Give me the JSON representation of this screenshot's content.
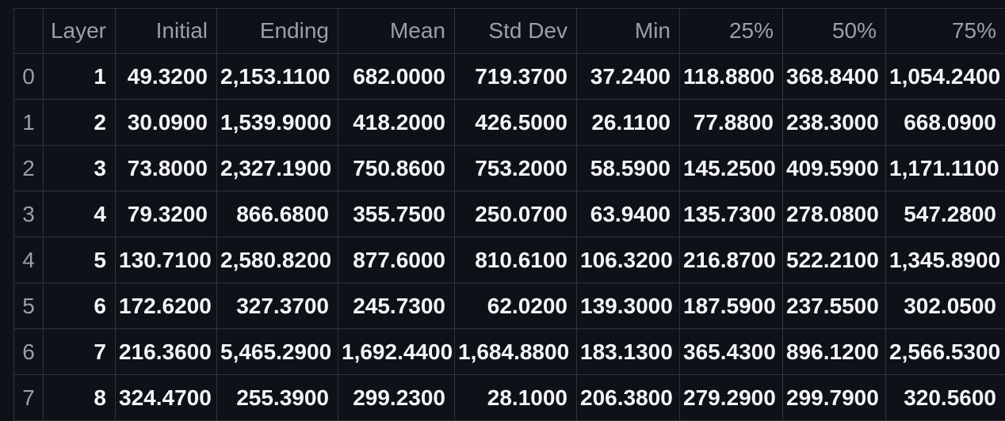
{
  "table": {
    "index_header": "",
    "columns": [
      "Layer",
      "Initial",
      "Ending",
      "Mean",
      "Std Dev",
      "Min",
      "25%",
      "50%",
      "75%"
    ],
    "rows": [
      {
        "index": "0",
        "cells": [
          "1",
          "49.3200",
          "2,153.1100",
          "682.0000",
          "719.3700",
          "37.2400",
          "118.8800",
          "368.8400",
          "1,054.2400"
        ]
      },
      {
        "index": "1",
        "cells": [
          "2",
          "30.0900",
          "1,539.9000",
          "418.2000",
          "426.5000",
          "26.1100",
          "77.8800",
          "238.3000",
          "668.0900"
        ]
      },
      {
        "index": "2",
        "cells": [
          "3",
          "73.8000",
          "2,327.1900",
          "750.8600",
          "753.2000",
          "58.5900",
          "145.2500",
          "409.5900",
          "1,171.1100"
        ]
      },
      {
        "index": "3",
        "cells": [
          "4",
          "79.3200",
          "866.6800",
          "355.7500",
          "250.0700",
          "63.9400",
          "135.7300",
          "278.0800",
          "547.2800"
        ]
      },
      {
        "index": "4",
        "cells": [
          "5",
          "130.7100",
          "2,580.8200",
          "877.6000",
          "810.6100",
          "106.3200",
          "216.8700",
          "522.2100",
          "1,345.8900"
        ]
      },
      {
        "index": "5",
        "cells": [
          "6",
          "172.6200",
          "327.3700",
          "245.7300",
          "62.0200",
          "139.3000",
          "187.5900",
          "237.5500",
          "302.0500"
        ]
      },
      {
        "index": "6",
        "cells": [
          "7",
          "216.3600",
          "5,465.2900",
          "1,692.4400",
          "1,684.8800",
          "183.1300",
          "365.4300",
          "896.1200",
          "2,566.5300"
        ]
      },
      {
        "index": "7",
        "cells": [
          "8",
          "324.4700",
          "255.3900",
          "299.2300",
          "28.1000",
          "206.3800",
          "279.2900",
          "299.7900",
          "320.5600"
        ]
      }
    ]
  },
  "colors": {
    "background": "#0e1117",
    "grid_border": "#30343b",
    "header_text": "#9aa0a6",
    "index_text": "#9aa0a6",
    "cell_text": "#f3f4f6"
  }
}
